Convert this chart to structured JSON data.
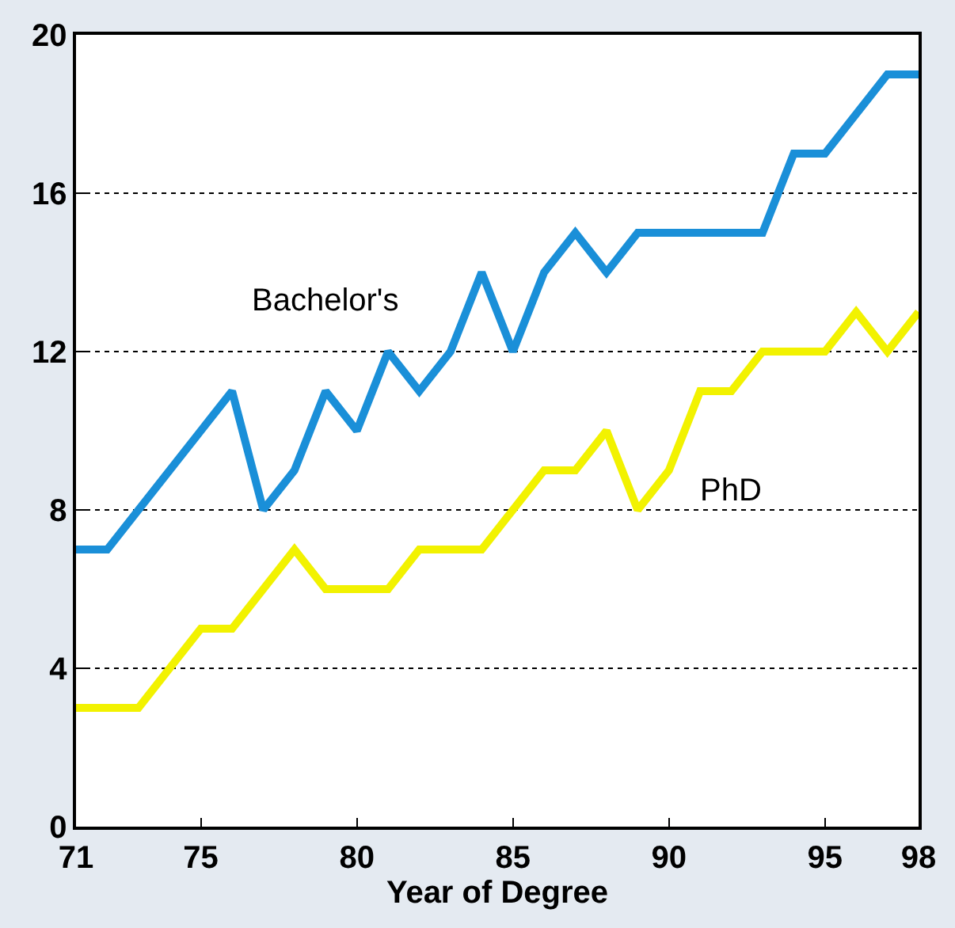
{
  "chart_data": {
    "type": "line",
    "xlabel": "Year of Degree",
    "x": [
      71,
      72,
      73,
      74,
      75,
      76,
      77,
      78,
      79,
      80,
      81,
      82,
      83,
      84,
      85,
      86,
      87,
      88,
      89,
      90,
      91,
      92,
      93,
      94,
      95,
      96,
      97,
      98
    ],
    "series": [
      {
        "name": "Bachelor's",
        "color": "#1a8fd8",
        "values": [
          7,
          7,
          8,
          9,
          10,
          11,
          8,
          9,
          11,
          10,
          12,
          11,
          12,
          14,
          12,
          14,
          15,
          14,
          15,
          15,
          15,
          15,
          15,
          17,
          17,
          18,
          19,
          19
        ]
      },
      {
        "name": "PhD",
        "color": "#f2f200",
        "values": [
          3,
          3,
          3,
          4,
          5,
          5,
          6,
          7,
          6,
          6,
          6,
          7,
          7,
          7,
          8,
          9,
          9,
          10,
          8,
          9,
          11,
          11,
          12,
          12,
          12,
          13,
          12,
          13
        ]
      }
    ],
    "xlim": [
      71,
      98
    ],
    "xticks": [
      71,
      75,
      80,
      85,
      90,
      95,
      98
    ],
    "ylim": [
      0,
      20
    ],
    "yticks": [
      0,
      4,
      8,
      12,
      16,
      20
    ],
    "grid": "y",
    "legend": false,
    "marker": "none",
    "line_style": "solid"
  }
}
